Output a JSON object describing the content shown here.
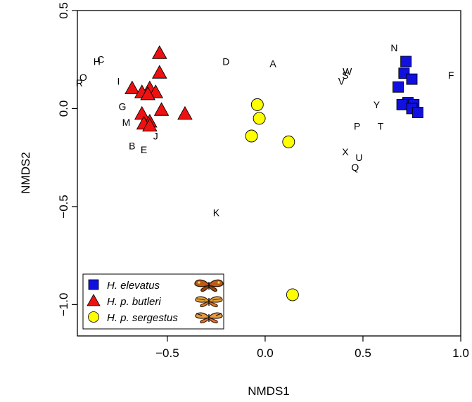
{
  "chart_data": {
    "type": "scatter",
    "xlabel": "NMDS1",
    "ylabel": "NMDS2",
    "xlim": [
      -0.96,
      1.0
    ],
    "ylim": [
      -1.16,
      0.5
    ],
    "x_ticks": [
      -0.5,
      0.0,
      0.5,
      1.0
    ],
    "x_tick_labels": [
      "−0.5",
      "0.0",
      "0.5",
      "1.0"
    ],
    "y_ticks": [
      -1.0,
      -0.5,
      0.0,
      0.5
    ],
    "y_tick_labels": [
      "−1.0",
      "−0.5",
      "0.0",
      "0.5"
    ],
    "grid": false,
    "legend_position": "bottom-left",
    "series": [
      {
        "name": "H. elevatus",
        "marker": "square",
        "color": "#1010e0",
        "points": [
          {
            "x": 0.72,
            "y": 0.24
          },
          {
            "x": 0.71,
            "y": 0.18
          },
          {
            "x": 0.75,
            "y": 0.15
          },
          {
            "x": 0.68,
            "y": 0.11
          },
          {
            "x": 0.73,
            "y": 0.03
          },
          {
            "x": 0.7,
            "y": 0.02
          },
          {
            "x": 0.76,
            "y": 0.02
          },
          {
            "x": 0.75,
            "y": 0.0
          },
          {
            "x": 0.78,
            "y": -0.02
          }
        ]
      },
      {
        "name": "H. p. butleri",
        "marker": "triangle",
        "color": "#ee1111",
        "points": [
          {
            "x": -0.54,
            "y": 0.28
          },
          {
            "x": -0.54,
            "y": 0.18
          },
          {
            "x": -0.68,
            "y": 0.1
          },
          {
            "x": -0.59,
            "y": 0.1
          },
          {
            "x": -0.63,
            "y": 0.08
          },
          {
            "x": -0.56,
            "y": 0.08
          },
          {
            "x": -0.6,
            "y": 0.07
          },
          {
            "x": -0.53,
            "y": -0.01
          },
          {
            "x": -0.63,
            "y": -0.03
          },
          {
            "x": -0.41,
            "y": -0.03
          },
          {
            "x": -0.59,
            "y": -0.07
          },
          {
            "x": -0.62,
            "y": -0.08
          },
          {
            "x": -0.59,
            "y": -0.09
          }
        ]
      },
      {
        "name": "H. p. sergestus",
        "marker": "circle",
        "color": "#ffff00",
        "points": [
          {
            "x": -0.04,
            "y": 0.02
          },
          {
            "x": -0.03,
            "y": -0.05
          },
          {
            "x": -0.07,
            "y": -0.14
          },
          {
            "x": 0.12,
            "y": -0.17
          },
          {
            "x": 0.14,
            "y": -0.95
          }
        ]
      }
    ],
    "point_labels": [
      {
        "text": "N",
        "x": 0.66,
        "y": 0.31
      },
      {
        "text": "F",
        "x": 0.95,
        "y": 0.17
      },
      {
        "text": "W",
        "x": 0.42,
        "y": 0.19
      },
      {
        "text": "S",
        "x": 0.41,
        "y": 0.17
      },
      {
        "text": "V",
        "x": 0.39,
        "y": 0.14
      },
      {
        "text": "Y",
        "x": 0.57,
        "y": 0.02
      },
      {
        "text": "P",
        "x": 0.47,
        "y": -0.09
      },
      {
        "text": "T",
        "x": 0.59,
        "y": -0.09
      },
      {
        "text": "X",
        "x": 0.41,
        "y": -0.22
      },
      {
        "text": "U",
        "x": 0.48,
        "y": -0.25
      },
      {
        "text": "Q",
        "x": 0.46,
        "y": -0.3
      },
      {
        "text": "D",
        "x": -0.2,
        "y": 0.24
      },
      {
        "text": "A",
        "x": 0.04,
        "y": 0.23
      },
      {
        "text": "K",
        "x": -0.25,
        "y": -0.53
      },
      {
        "text": "H",
        "x": -0.86,
        "y": 0.24
      },
      {
        "text": "C",
        "x": -0.84,
        "y": 0.25
      },
      {
        "text": "O",
        "x": -0.93,
        "y": 0.16
      },
      {
        "text": "R",
        "x": -0.95,
        "y": 0.13
      },
      {
        "text": "I",
        "x": -0.75,
        "y": 0.14
      },
      {
        "text": "G",
        "x": -0.73,
        "y": 0.01
      },
      {
        "text": "M",
        "x": -0.71,
        "y": -0.07
      },
      {
        "text": "B",
        "x": -0.68,
        "y": -0.19
      },
      {
        "text": "J",
        "x": -0.56,
        "y": -0.14
      },
      {
        "text": "E",
        "x": -0.62,
        "y": -0.21
      }
    ]
  }
}
